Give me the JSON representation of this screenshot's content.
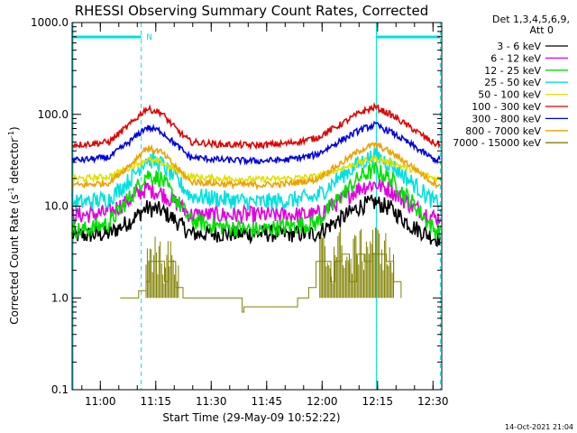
{
  "chart_data": {
    "type": "line",
    "title": "RHESSI Observing Summary Count Rates, Corrected",
    "xlabel": "Start Time (29-May-09 10:52:22)",
    "ylabel_main": "Corrected Count Rate (s",
    "ylabel_sup": "-1",
    "ylabel_mid": " detector",
    "ylabel_end": ")",
    "yscale": "log",
    "ylim": [
      0.1,
      1000
    ],
    "xlim_minutes": [
      0,
      100
    ],
    "x_ticks": [
      "11:00",
      "11:15",
      "11:30",
      "11:45",
      "12:00",
      "12:15",
      "12:30"
    ],
    "x_tick_minutes": [
      7.63,
      22.63,
      37.63,
      52.63,
      67.63,
      82.63,
      97.63
    ],
    "y_ticks": [
      "0.1",
      "1.0",
      "10.0",
      "100.0",
      "1000.0"
    ],
    "y_tick_values": [
      0.1,
      1,
      10,
      100,
      1000
    ],
    "legend_header": [
      "Det 1,3,4,5,6,9,",
      "Att 0"
    ],
    "legend_position": "right",
    "night_marker": "N",
    "night_bars": [
      [
        0,
        18.7
      ],
      [
        82.3,
        99.6
      ]
    ],
    "night_lines_minutes": [
      18.7,
      82.3,
      99.6
    ],
    "series": [
      {
        "name": "3 - 6 keV",
        "color": "#000000",
        "x": [
          3,
          10,
          16,
          20,
          24,
          28,
          32,
          40,
          50,
          58,
          66,
          72,
          78,
          82,
          86,
          92,
          98
        ],
        "y": [
          4.8,
          5,
          7,
          9.5,
          9,
          7,
          5,
          5,
          5,
          5,
          5,
          7,
          10,
          11,
          9.5,
          6,
          4.5
        ]
      },
      {
        "name": "6 - 12 keV",
        "color": "#e000e0",
        "x": [
          3,
          10,
          16,
          20,
          24,
          28,
          32,
          40,
          50,
          58,
          66,
          72,
          78,
          82,
          86,
          92,
          98
        ],
        "y": [
          8,
          8.5,
          12,
          15.5,
          14,
          11,
          8,
          8,
          8,
          8,
          8,
          11,
          16,
          17.5,
          15,
          10,
          7.5
        ]
      },
      {
        "name": "12 - 25 keV",
        "color": "#00e000",
        "x": [
          3,
          10,
          16,
          20,
          24,
          28,
          32,
          40,
          50,
          58,
          66,
          72,
          78,
          82,
          86,
          92,
          98
        ],
        "y": [
          5.5,
          6.5,
          13,
          22,
          20,
          12,
          7,
          6,
          5.5,
          6,
          6.5,
          12,
          21,
          25,
          20,
          11,
          5.5
        ]
      },
      {
        "name": "25 - 50 keV",
        "color": "#00e0e0",
        "x": [
          3,
          10,
          16,
          20,
          24,
          28,
          32,
          40,
          50,
          58,
          66,
          72,
          78,
          82,
          86,
          92,
          98
        ],
        "y": [
          11,
          12,
          20,
          33,
          29,
          20,
          13,
          12,
          11,
          11.5,
          12.5,
          20,
          30,
          36,
          29,
          18,
          11
        ]
      },
      {
        "name": "50 - 100 keV",
        "color": "#e0e000",
        "x": [
          3,
          10,
          16,
          20,
          24,
          28,
          32,
          40,
          50,
          58,
          66,
          72,
          78,
          82,
          86,
          92,
          98
        ],
        "y": [
          20,
          21,
          27,
          32,
          30,
          25,
          21,
          20,
          19.5,
          20,
          21,
          25,
          30,
          33,
          30,
          25,
          20
        ]
      },
      {
        "name": "100 - 300 keV",
        "color": "#e00000",
        "x": [
          3,
          10,
          16,
          20,
          24,
          28,
          32,
          40,
          50,
          58,
          66,
          72,
          78,
          82,
          86,
          92,
          98
        ],
        "y": [
          47,
          50,
          80,
          115,
          105,
          70,
          50,
          47,
          46,
          48,
          55,
          75,
          105,
          120,
          100,
          70,
          48
        ]
      },
      {
        "name": "300 - 800 keV",
        "color": "#0000e0",
        "x": [
          3,
          10,
          16,
          20,
          24,
          28,
          32,
          40,
          50,
          58,
          66,
          72,
          78,
          82,
          86,
          92,
          98
        ],
        "y": [
          32,
          34,
          52,
          72,
          66,
          47,
          34,
          32,
          31,
          32,
          36,
          50,
          68,
          77,
          65,
          46,
          32
        ]
      },
      {
        "name": "800 - 7000 keV",
        "color": "#f0a000",
        "x": [
          3,
          10,
          16,
          20,
          24,
          28,
          32,
          40,
          50,
          58,
          66,
          72,
          78,
          82,
          86,
          92,
          98
        ],
        "y": [
          17,
          18,
          29,
          43,
          39,
          27,
          18.5,
          17.5,
          17,
          17.5,
          19.5,
          28,
          41,
          47,
          39,
          27,
          17.5
        ]
      },
      {
        "name": "7000 - 15000 keV",
        "color": "#808000",
        "x": [
          13,
          18,
          20,
          21,
          23,
          25,
          26,
          28,
          30,
          46,
          46.5,
          61,
          64,
          66,
          68,
          70,
          71,
          73,
          75,
          77,
          79,
          81,
          83,
          85,
          87,
          89
        ],
        "y": [
          1,
          1.2,
          1.5,
          2.5,
          2.5,
          1.5,
          2.5,
          1.3,
          1,
          0.7,
          0.8,
          1,
          1.3,
          2.5,
          2.5,
          1.5,
          2.5,
          3,
          1.5,
          3,
          2.5,
          3,
          3,
          2.5,
          1.5,
          1
        ]
      }
    ]
  },
  "footer": {
    "timestamp": "14-Oct-2021 21:04"
  }
}
